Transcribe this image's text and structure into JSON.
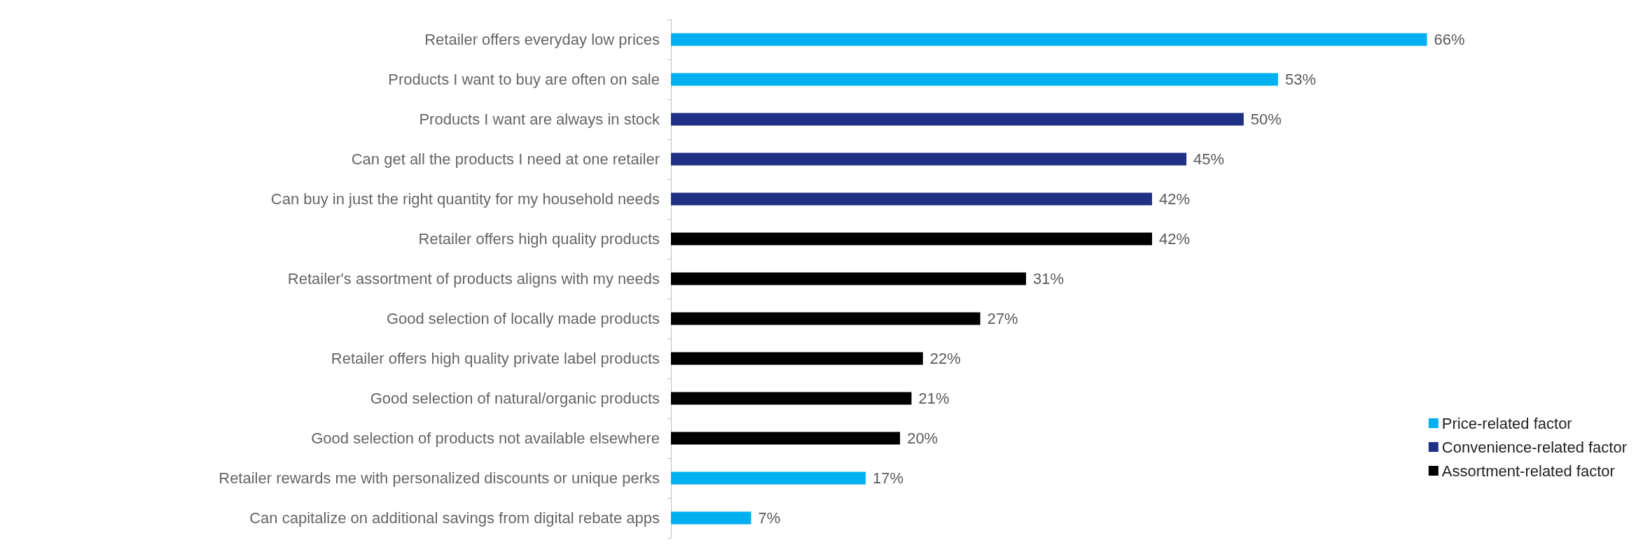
{
  "chart_data": {
    "type": "bar",
    "orientation": "horizontal",
    "stacked": true,
    "categories": [
      "Retailer offers everyday low prices",
      "Products I want to buy are often on sale",
      "Products I want are always in stock",
      "Can get all the products I need at one retailer",
      "Can buy in just the right quantity for my household needs",
      "Retailer offers high quality products",
      "Retailer's assortment of products aligns with my needs",
      "Good selection of locally made products",
      "Retailer offers high quality private label products",
      "Good selection of natural/organic products",
      "Good selection of products not available elsewhere",
      "Retailer rewards me with personalized discounts or unique perks",
      "Can capitalize on additional savings from digital rebate apps"
    ],
    "series": [
      {
        "name": "Price-related factor",
        "color": "#00b0f0",
        "values": [
          66,
          53,
          null,
          null,
          null,
          null,
          null,
          null,
          null,
          null,
          null,
          17,
          7
        ],
        "value_labels": [
          "66%",
          "53%",
          null,
          null,
          null,
          null,
          null,
          null,
          null,
          null,
          null,
          "17%",
          "7%"
        ]
      },
      {
        "name": "Convenience-related factor",
        "color": "#203185",
        "values": [
          null,
          null,
          50,
          45,
          42,
          null,
          null,
          null,
          null,
          null,
          null,
          null,
          null
        ],
        "value_labels": [
          null,
          null,
          "50%",
          "45%",
          "42%",
          null,
          null,
          null,
          null,
          null,
          null,
          null,
          null
        ]
      },
      {
        "name": "Assortment-related factor",
        "color": "#000000",
        "values": [
          null,
          null,
          null,
          null,
          null,
          42,
          31,
          27,
          22,
          21,
          20,
          null,
          null
        ],
        "value_labels": [
          null,
          null,
          null,
          null,
          null,
          "42%",
          "31%",
          "27%",
          "22%",
          "21%",
          "20%",
          null,
          null
        ]
      }
    ],
    "tick_labels": "y",
    "grid": false,
    "legend": "bottom right"
  }
}
